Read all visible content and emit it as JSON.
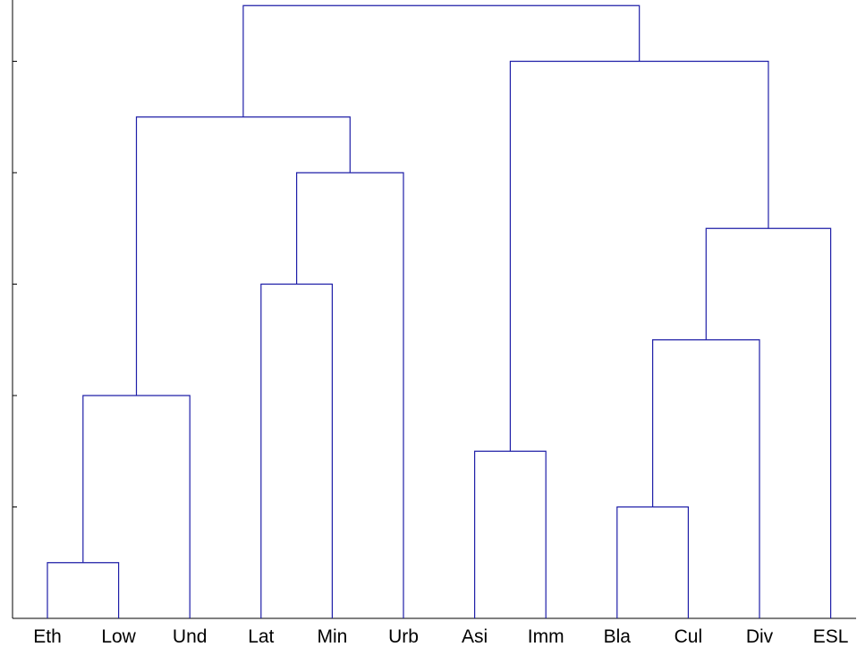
{
  "chart_data": {
    "type": "dendrogram",
    "title": "",
    "xlabel": "",
    "ylabel": "",
    "leaves": [
      "Eth",
      "Low",
      "Und",
      "Lat",
      "Min",
      "Urb",
      "Asi",
      "Imm",
      "Bla",
      "Cul",
      "Div",
      "ESL"
    ],
    "ylim": [
      0,
      11.1
    ],
    "y_ticks": [
      2,
      4,
      6,
      8,
      10
    ],
    "y_tick_labels_shown": false,
    "grid": false,
    "link_color": "#1f1fa8",
    "merges": [
      {
        "left": "Eth",
        "right": "Low",
        "height": 1
      },
      {
        "left": "Bla",
        "right": "Cul",
        "height": 2
      },
      {
        "left": "Asi",
        "right": "Imm",
        "height": 3
      },
      {
        "left": "Eth+Low",
        "right": "Und",
        "height": 4
      },
      {
        "left": "Bla+Cul",
        "right": "Div",
        "height": 5
      },
      {
        "left": "Lat",
        "right": "Min",
        "height": 6
      },
      {
        "left": "Bla+Cul+Div",
        "right": "ESL",
        "height": 7
      },
      {
        "left": "Lat+Min",
        "right": "Urb",
        "height": 8
      },
      {
        "left": "Eth+Low+Und",
        "right": "Lat+Min+Urb",
        "height": 9
      },
      {
        "left": "Asi+Imm",
        "right": "Bla+Cul+Div+ESL",
        "height": 10
      },
      {
        "left": "Eth+Low+Und+Lat+Min+Urb",
        "right": "Asi+Imm+Bla+Cul+Div+ESL",
        "height": 11
      }
    ]
  }
}
